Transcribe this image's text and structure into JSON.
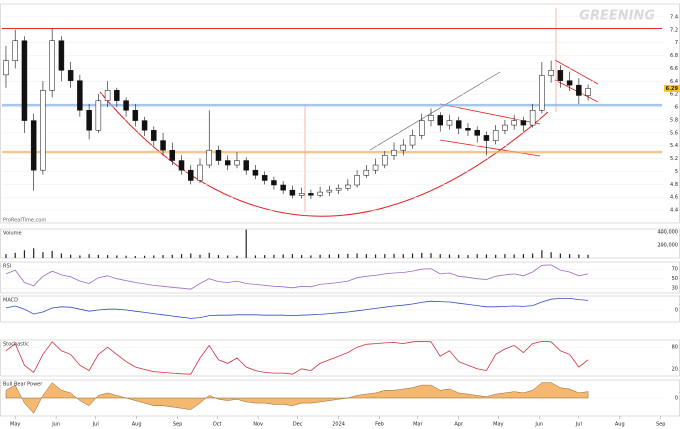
{
  "chart_data": {
    "type": "candlestick",
    "title": "GREENING",
    "source": "ProRealTime.com",
    "xlim": [
      0,
      500
    ],
    "xticks": [
      {
        "value": 10,
        "label": "May"
      },
      {
        "value": 41,
        "label": "Jun"
      },
      {
        "value": 71,
        "label": "Jul"
      },
      {
        "value": 102,
        "label": "Aug"
      },
      {
        "value": 133,
        "label": "Sep"
      },
      {
        "value": 163,
        "label": "Oct"
      },
      {
        "value": 194,
        "label": "Nov"
      },
      {
        "value": 224,
        "label": "Dec"
      },
      {
        "value": 255,
        "label": "2024"
      },
      {
        "value": 286,
        "label": "Feb"
      },
      {
        "value": 315,
        "label": "Mar"
      },
      {
        "value": 346,
        "label": "Apr"
      },
      {
        "value": 376,
        "label": "May"
      },
      {
        "value": 407,
        "label": "Jun"
      },
      {
        "value": 437,
        "label": "Jul"
      },
      {
        "value": 468,
        "label": "Aug"
      },
      {
        "value": 499,
        "label": "Sep"
      }
    ],
    "ylim": [
      4.2,
      7.6
    ],
    "yticks": [
      4.4,
      4.6,
      4.8,
      5,
      5.2,
      5.4,
      5.6,
      5.8,
      6,
      6.2,
      6.4,
      6.6,
      6.8,
      7,
      7.2,
      7.4
    ],
    "up_color": "#ffffff",
    "down_color": "#111111",
    "levels": [
      {
        "value": 7.22,
        "color": "#e03030"
      },
      {
        "value": 6.03,
        "color": "#7fb0e8"
      },
      {
        "value": 5.3,
        "color": "#f0b060"
      }
    ],
    "x": [
      3,
      10,
      17,
      24,
      31,
      38,
      45,
      52,
      59,
      66,
      73,
      80,
      87,
      94,
      101,
      108,
      115,
      122,
      129,
      136,
      143,
      150,
      157,
      164,
      171,
      178,
      185,
      192,
      199,
      206,
      213,
      220,
      227,
      234,
      241,
      248,
      255,
      262,
      269,
      276,
      283,
      290,
      297,
      304,
      311,
      318,
      325,
      332,
      339,
      346,
      353,
      360,
      367,
      374,
      381,
      388,
      395,
      402,
      409,
      416,
      423,
      430,
      437,
      444
    ],
    "ohlc": [
      [
        6.5,
        6.95,
        6.3,
        6.72
      ],
      [
        6.72,
        7.2,
        6.6,
        7.03
      ],
      [
        7.03,
        7.1,
        5.6,
        5.79
      ],
      [
        5.79,
        5.9,
        4.7,
        5.02
      ],
      [
        5.02,
        6.4,
        4.95,
        6.26
      ],
      [
        6.26,
        7.22,
        6.15,
        7.03
      ],
      [
        7.03,
        7.1,
        6.4,
        6.57
      ],
      [
        6.57,
        6.7,
        6.3,
        6.41
      ],
      [
        6.41,
        6.5,
        5.85,
        5.95
      ],
      [
        5.95,
        6.05,
        5.5,
        5.64
      ],
      [
        5.64,
        6.2,
        5.6,
        6.1
      ],
      [
        6.1,
        6.4,
        6.0,
        6.26
      ],
      [
        6.26,
        6.3,
        6.0,
        6.1
      ],
      [
        6.1,
        6.15,
        5.85,
        5.95
      ],
      [
        5.95,
        6.05,
        5.7,
        5.79
      ],
      [
        5.79,
        5.85,
        5.55,
        5.64
      ],
      [
        5.64,
        5.7,
        5.4,
        5.48
      ],
      [
        5.48,
        5.6,
        5.25,
        5.33
      ],
      [
        5.33,
        5.45,
        5.1,
        5.17
      ],
      [
        5.17,
        5.25,
        4.95,
        5.02
      ],
      [
        5.02,
        5.1,
        4.8,
        4.86
      ],
      [
        4.86,
        5.2,
        4.82,
        5.1
      ],
      [
        5.1,
        5.95,
        5.05,
        5.33
      ],
      [
        5.33,
        5.4,
        5.1,
        5.17
      ],
      [
        5.17,
        5.25,
        5.02,
        5.1
      ],
      [
        5.1,
        5.3,
        5.05,
        5.17
      ],
      [
        5.17,
        5.22,
        4.95,
        5.02
      ],
      [
        5.02,
        5.1,
        4.88,
        4.94
      ],
      [
        4.94,
        5.0,
        4.8,
        4.86
      ],
      [
        4.86,
        4.92,
        4.72,
        4.79
      ],
      [
        4.79,
        4.85,
        4.65,
        4.71
      ],
      [
        4.71,
        4.78,
        4.58,
        4.63
      ],
      [
        4.63,
        4.75,
        4.58,
        4.66
      ],
      [
        4.66,
        4.72,
        4.57,
        4.63
      ],
      [
        4.63,
        4.76,
        4.6,
        4.68
      ],
      [
        4.68,
        4.78,
        4.62,
        4.71
      ],
      [
        4.71,
        4.8,
        4.65,
        4.74
      ],
      [
        4.74,
        4.88,
        4.7,
        4.79
      ],
      [
        4.79,
        5.02,
        4.75,
        4.94
      ],
      [
        4.94,
        5.1,
        4.9,
        5.02
      ],
      [
        5.02,
        5.2,
        4.96,
        5.1
      ],
      [
        5.1,
        5.32,
        5.05,
        5.25
      ],
      [
        5.25,
        5.45,
        5.18,
        5.33
      ],
      [
        5.33,
        5.5,
        5.25,
        5.41
      ],
      [
        5.41,
        5.65,
        5.35,
        5.56
      ],
      [
        5.56,
        5.9,
        5.5,
        5.79
      ],
      [
        5.79,
        5.98,
        5.7,
        5.87
      ],
      [
        5.87,
        5.92,
        5.62,
        5.72
      ],
      [
        5.72,
        5.88,
        5.65,
        5.79
      ],
      [
        5.79,
        5.85,
        5.58,
        5.67
      ],
      [
        5.67,
        5.75,
        5.55,
        5.64
      ],
      [
        5.64,
        5.7,
        5.45,
        5.56
      ],
      [
        5.56,
        5.62,
        5.25,
        5.48
      ],
      [
        5.48,
        5.72,
        5.42,
        5.64
      ],
      [
        5.64,
        5.8,
        5.58,
        5.72
      ],
      [
        5.72,
        5.88,
        5.65,
        5.79
      ],
      [
        5.79,
        5.85,
        5.62,
        5.72
      ],
      [
        5.72,
        6.05,
        5.68,
        5.95
      ],
      [
        5.95,
        6.7,
        5.9,
        6.49
      ],
      [
        6.49,
        6.72,
        6.38,
        6.57
      ],
      [
        6.57,
        6.65,
        6.3,
        6.41
      ],
      [
        6.41,
        6.55,
        6.25,
        6.34
      ],
      [
        6.34,
        6.45,
        6.05,
        6.18
      ],
      [
        6.18,
        6.35,
        6.1,
        6.29
      ]
    ],
    "indicators": [
      {
        "type": "bar",
        "name": "Volume",
        "color": "#222222",
        "ylim": [
          0,
          450000
        ],
        "yticks": [
          {
            "value": 200000,
            "label": "200,000"
          },
          {
            "value": 400000,
            "label": "400,000"
          }
        ],
        "values": [
          60000,
          80000,
          120000,
          150000,
          90000,
          110000,
          70000,
          50000,
          40000,
          60000,
          50000,
          45000,
          40000,
          35000,
          30000,
          35000,
          40000,
          45000,
          50000,
          60000,
          70000,
          50000,
          80000,
          45000,
          40000,
          35000,
          440000,
          40000,
          45000,
          50000,
          55000,
          60000,
          45000,
          40000,
          50000,
          55000,
          60000,
          65000,
          70000,
          60000,
          55000,
          60000,
          65000,
          60000,
          70000,
          80000,
          75000,
          60000,
          55000,
          50000,
          45000,
          60000,
          55000,
          50000,
          60000,
          55000,
          60000,
          70000,
          120000,
          90000,
          70000,
          60000,
          55000,
          50000
        ]
      },
      {
        "type": "line",
        "name": "RSI",
        "color": "#9a6cc8",
        "ylim": [
          20,
          85
        ],
        "yticks": [
          30,
          50,
          70
        ],
        "values": [
          60,
          68,
          42,
          35,
          55,
          66,
          58,
          54,
          45,
          40,
          52,
          56,
          50,
          46,
          42,
          39,
          36,
          34,
          32,
          30,
          28,
          40,
          50,
          44,
          42,
          45,
          40,
          38,
          36,
          34,
          33,
          31,
          34,
          33,
          38,
          40,
          42,
          45,
          52,
          55,
          57,
          60,
          62,
          63,
          66,
          70,
          71,
          60,
          62,
          55,
          53,
          50,
          48,
          55,
          58,
          60,
          56,
          64,
          78,
          79,
          68,
          64,
          56,
          60
        ]
      },
      {
        "type": "line",
        "name": "MACD",
        "color": "#3050c0",
        "ylim": [
          -0.3,
          0.35
        ],
        "yticks": [
          0
        ],
        "values": [
          0.05,
          0.1,
          0.02,
          -0.1,
          -0.05,
          0.05,
          0.08,
          0.07,
          0.02,
          -0.03,
          0,
          0.02,
          0.02,
          0,
          -0.03,
          -0.06,
          -0.09,
          -0.12,
          -0.15,
          -0.18,
          -0.21,
          -0.19,
          -0.14,
          -0.13,
          -0.13,
          -0.12,
          -0.12,
          -0.12,
          -0.13,
          -0.13,
          -0.13,
          -0.14,
          -0.13,
          -0.12,
          -0.11,
          -0.09,
          -0.07,
          -0.05,
          -0.02,
          0.01,
          0.04,
          0.07,
          0.1,
          0.12,
          0.15,
          0.19,
          0.22,
          0.21,
          0.2,
          0.17,
          0.14,
          0.11,
          0.08,
          0.08,
          0.09,
          0.1,
          0.09,
          0.11,
          0.2,
          0.27,
          0.29,
          0.29,
          0.26,
          0.24
        ]
      },
      {
        "type": "line",
        "name": "Stochastic",
        "color": "#d03040",
        "ylim": [
          0,
          100
        ],
        "yticks": [
          20,
          80
        ],
        "values": [
          70,
          90,
          30,
          10,
          60,
          95,
          70,
          60,
          30,
          15,
          60,
          80,
          60,
          40,
          25,
          18,
          12,
          10,
          8,
          6,
          5,
          50,
          85,
          45,
          35,
          50,
          25,
          15,
          10,
          8,
          8,
          5,
          20,
          15,
          35,
          45,
          55,
          65,
          80,
          88,
          90,
          92,
          93,
          90,
          95,
          96,
          95,
          55,
          70,
          40,
          30,
          20,
          15,
          60,
          75,
          85,
          65,
          90,
          96,
          95,
          70,
          60,
          25,
          45
        ]
      },
      {
        "type": "area",
        "name": "Bull Bear Power",
        "color": "#f0a040",
        "ylim": [
          -0.7,
          0.7
        ],
        "yticks": [
          0
        ],
        "values": [
          0.3,
          0.5,
          -0.2,
          -0.6,
          0.1,
          0.6,
          0.3,
          0.2,
          -0.1,
          -0.3,
          0.1,
          0.2,
          0.1,
          0,
          -0.1,
          -0.2,
          -0.3,
          -0.3,
          -0.35,
          -0.4,
          -0.45,
          -0.2,
          0.1,
          -0.05,
          -0.1,
          -0.05,
          -0.15,
          -0.2,
          -0.2,
          -0.25,
          -0.25,
          -0.3,
          -0.2,
          -0.2,
          -0.15,
          -0.1,
          -0.05,
          0,
          0.1,
          0.15,
          0.2,
          0.3,
          0.3,
          0.35,
          0.4,
          0.5,
          0.5,
          0.3,
          0.35,
          0.2,
          0.15,
          0.1,
          0.05,
          0.15,
          0.2,
          0.25,
          0.2,
          0.3,
          0.6,
          0.6,
          0.4,
          0.35,
          0.2,
          0.25
        ]
      }
    ]
  }
}
